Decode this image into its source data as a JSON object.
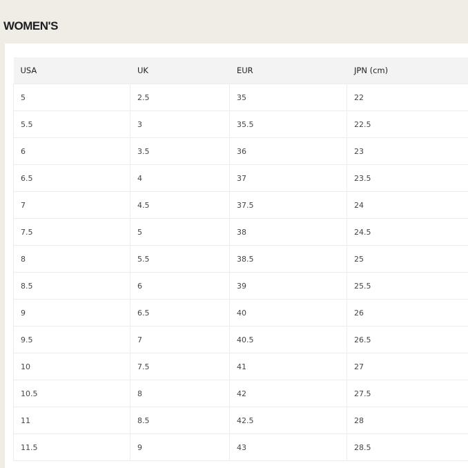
{
  "title": "WOMEN'S",
  "table": {
    "headers": [
      "USA",
      "UK",
      "EUR",
      "JPN (cm)"
    ],
    "rows": [
      [
        "5",
        "2.5",
        "35",
        "22"
      ],
      [
        "5.5",
        "3",
        "35.5",
        "22.5"
      ],
      [
        "6",
        "3.5",
        "36",
        "23"
      ],
      [
        "6.5",
        "4",
        "37",
        "23.5"
      ],
      [
        "7",
        "4.5",
        "37.5",
        "24"
      ],
      [
        "7.5",
        "5",
        "38",
        "24.5"
      ],
      [
        "8",
        "5.5",
        "38.5",
        "25"
      ],
      [
        "8.5",
        "6",
        "39",
        "25.5"
      ],
      [
        "9",
        "6.5",
        "40",
        "26"
      ],
      [
        "9.5",
        "7",
        "40.5",
        "26.5"
      ],
      [
        "10",
        "7.5",
        "41",
        "27"
      ],
      [
        "10.5",
        "8",
        "42",
        "27.5"
      ],
      [
        "11",
        "8.5",
        "42.5",
        "28"
      ],
      [
        "11.5",
        "9",
        "43",
        "28.5"
      ]
    ]
  }
}
